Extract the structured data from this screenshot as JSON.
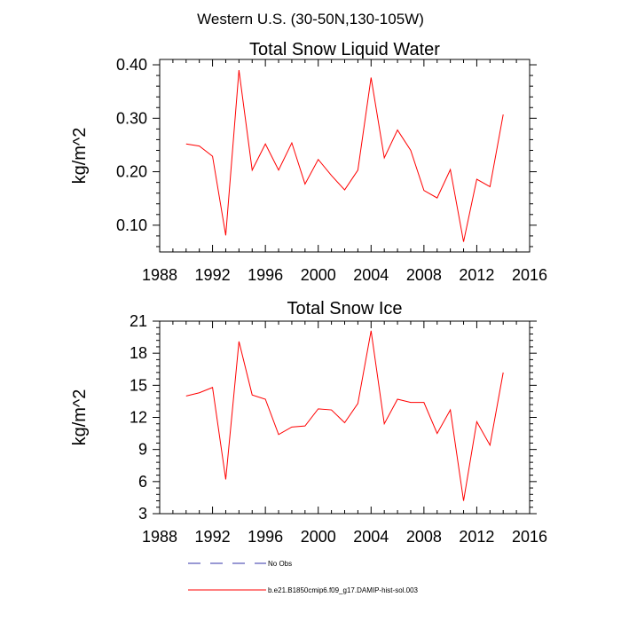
{
  "figure_title": "Western U.S. (30-50N,130-105W)",
  "legend": [
    {
      "label": "No Obs",
      "color": "#3333aa",
      "style": "dashed"
    },
    {
      "label": "b.e21.B1850cmip6.f09_g17.DAMIP-hist-sol.003",
      "color": "#ff0000",
      "style": "solid"
    }
  ],
  "chart_data": [
    {
      "type": "line",
      "title": "Total Snow Liquid Water",
      "xlabel": "",
      "ylabel": "kg/m^2",
      "xlim": [
        1988,
        2016
      ],
      "ylim": [
        0.05,
        0.41
      ],
      "xticks": [
        1988,
        1992,
        1996,
        2000,
        2004,
        2008,
        2012,
        2016
      ],
      "yticks": [
        0.1,
        0.2,
        0.3,
        0.4
      ],
      "ytick_labels": [
        "0.10",
        "0.20",
        "0.30",
        "0.40"
      ],
      "grid": false,
      "color": "#ff0000",
      "x": [
        1990,
        1991,
        1992,
        1993,
        1994,
        1995,
        1996,
        1997,
        1998,
        1999,
        2000,
        2001,
        2002,
        2003,
        2004,
        2005,
        2006,
        2007,
        2008,
        2009,
        2010,
        2011,
        2012,
        2013,
        2014
      ],
      "values": [
        0.252,
        0.248,
        0.229,
        0.081,
        0.39,
        0.203,
        0.252,
        0.203,
        0.254,
        0.177,
        0.223,
        0.193,
        0.166,
        0.203,
        0.376,
        0.226,
        0.278,
        0.24,
        0.165,
        0.151,
        0.204,
        0.069,
        0.186,
        0.172,
        0.307
      ]
    },
    {
      "type": "line",
      "title": "Total Snow Ice",
      "xlabel": "",
      "ylabel": "kg/m^2",
      "xlim": [
        1988,
        2016
      ],
      "ylim": [
        3,
        21
      ],
      "xticks": [
        1988,
        1992,
        1996,
        2000,
        2004,
        2008,
        2012,
        2016
      ],
      "yticks": [
        3,
        6,
        9,
        12,
        15,
        18,
        21
      ],
      "ytick_labels": [
        "3",
        "6",
        "9",
        "12",
        "15",
        "18",
        "21"
      ],
      "grid": false,
      "color": "#ff0000",
      "x": [
        1990,
        1991,
        1992,
        1993,
        1994,
        1995,
        1996,
        1997,
        1998,
        1999,
        2000,
        2001,
        2002,
        2003,
        2004,
        2005,
        2006,
        2007,
        2008,
        2009,
        2010,
        2011,
        2012,
        2013,
        2014
      ],
      "values": [
        14.0,
        14.3,
        14.8,
        6.2,
        19.1,
        14.1,
        13.7,
        10.4,
        11.1,
        11.2,
        12.8,
        12.7,
        11.5,
        13.3,
        20.1,
        11.4,
        13.7,
        13.4,
        13.4,
        10.5,
        12.7,
        4.2,
        11.6,
        9.4,
        16.2
      ]
    }
  ]
}
